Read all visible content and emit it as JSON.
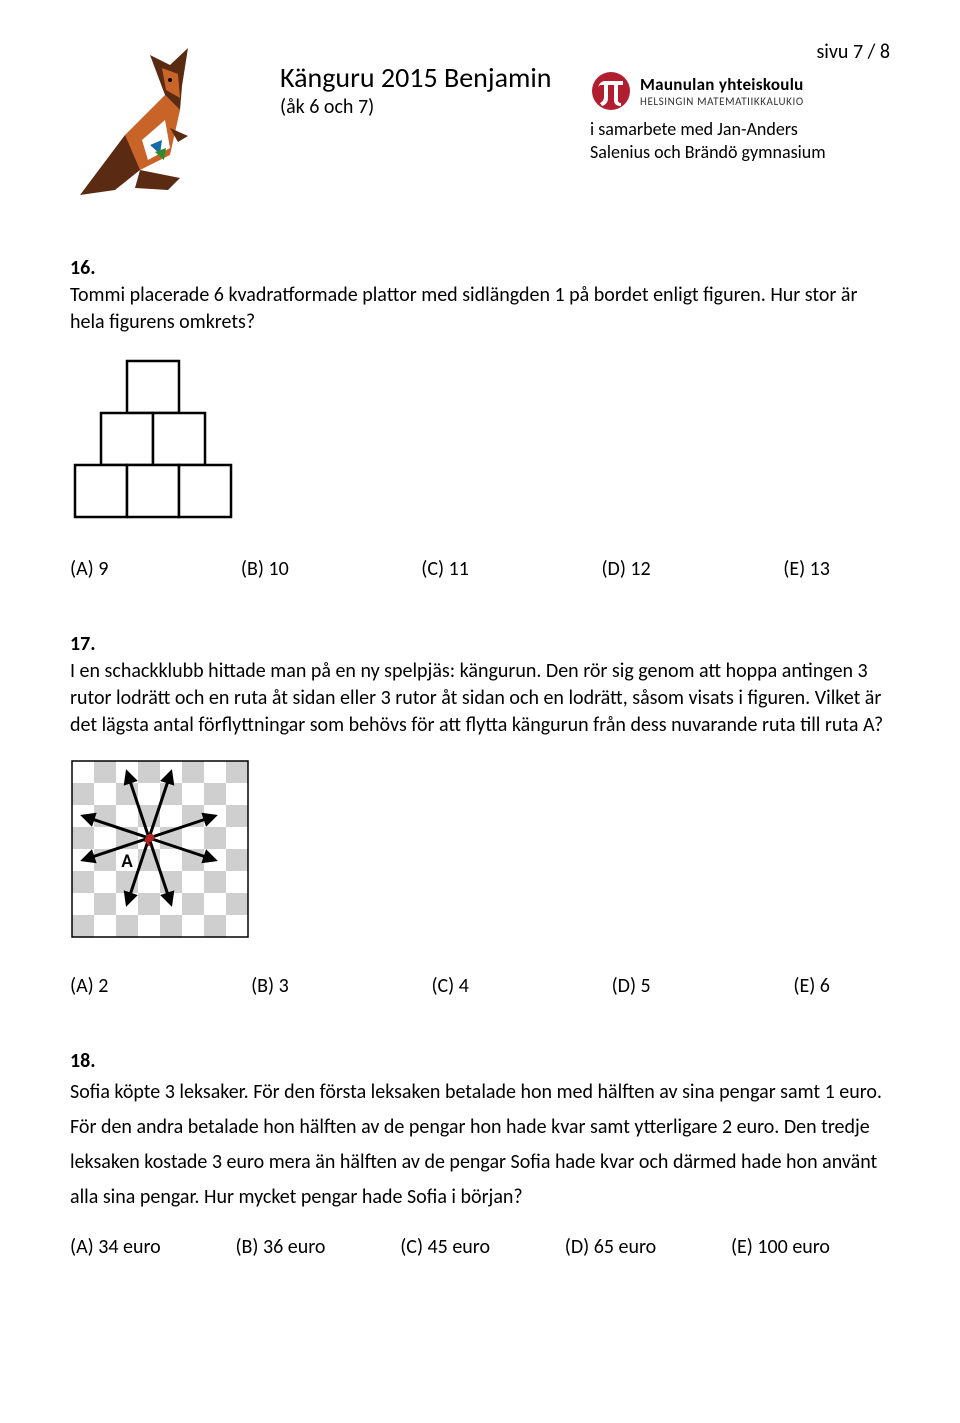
{
  "page": {
    "label": "sivu 7 / 8"
  },
  "title": {
    "main": "Känguru 2015 Benjamin",
    "sub": "(åk 6 och 7)"
  },
  "school": {
    "name": "Maunulan yhteiskoulu",
    "sub": "HELSINGIN MATEMATIIKKALUKIO"
  },
  "samarbete": {
    "l1": "i samarbete med Jan-Anders",
    "l2": "Salenius och Brändö gymnasium"
  },
  "q16": {
    "num": "16.",
    "text": "Tommi placerade 6 kvadratformade plattor med sidlängden 1 på bordet enligt figuren. Hur stor är hela figurens omkrets?",
    "options": {
      "A": "(A) 9",
      "B": "(B) 10",
      "C": "(C) 11",
      "D": "(D) 12",
      "E": "(E) 13"
    }
  },
  "q17": {
    "num": "17.",
    "text": "I en schackklubb hittade man på en ny spelpjäs: kängurun. Den rör sig genom att hoppa antingen 3 rutor lodrätt och en ruta åt sidan eller 3 rutor åt sidan och en lodrätt, såsom visats i figuren. Vilket är det lägsta antal förflyttningar som behövs för att flytta kängurun från dess nuvarande ruta till ruta A?",
    "labelA": "A",
    "options": {
      "A": "(A) 2",
      "B": "(B) 3",
      "C": "(C) 4",
      "D": "(D) 5",
      "E": "(E) 6"
    }
  },
  "q18": {
    "num": "18.",
    "text": "Sofia köpte 3 leksaker. För den första leksaken betalade hon med hälften av sina pengar samt 1 euro. För den andra betalade hon hälften av de pengar hon hade kvar samt ytterligare 2 euro. Den tredje leksaken kostade 3 euro mera än hälften av de pengar Sofia hade kvar och därmed hade hon använt alla sina pengar. Hur mycket pengar hade Sofia i början?",
    "options": {
      "A": "(A) 34 euro",
      "B": "(B) 36 euro",
      "C": "(C) 45 euro",
      "D": "(D) 65 euro",
      "E": "(E) 100 euro"
    }
  },
  "figSquares": {
    "cell": 52,
    "stroke": "#000000",
    "strokeWidth": 2.5,
    "fill": "#ffffff",
    "cells": [
      {
        "r": 0,
        "c": 1.0
      },
      {
        "r": 1,
        "c": 0.5
      },
      {
        "r": 1,
        "c": 1.5
      },
      {
        "r": 2,
        "c": 0.0
      },
      {
        "r": 2,
        "c": 1.0
      },
      {
        "r": 2,
        "c": 2.0
      }
    ]
  },
  "figChess": {
    "cell": 22,
    "n": 8,
    "light": "#ffffff",
    "dark": "#cfcfcf",
    "border": "#000000",
    "borderWidth": 1.5,
    "arrowColor": "#000000",
    "arrowWidth": 3,
    "kangaroo": {
      "row": 3,
      "col": 3,
      "color": "#b22222"
    },
    "A": {
      "row": 4,
      "col": 2
    },
    "arrows": [
      {
        "dr": -3,
        "dc": -1
      },
      {
        "dr": -3,
        "dc": 1
      },
      {
        "dr": 3,
        "dc": -1
      },
      {
        "dr": 3,
        "dc": 1
      },
      {
        "dr": -1,
        "dc": -3
      },
      {
        "dr": 1,
        "dc": -3
      },
      {
        "dr": -1,
        "dc": 3
      },
      {
        "dr": 1,
        "dc": 3
      }
    ]
  },
  "kangarooLogo": {
    "bodyDark": "#5a2a12",
    "bodyLight": "#c86428",
    "belly": "#ffffff",
    "detailBlue": "#1a6aa8",
    "detailGreen": "#2e8b2e"
  },
  "piLogo": {
    "circle": "#b11e2f",
    "pi": "#ffffff"
  }
}
